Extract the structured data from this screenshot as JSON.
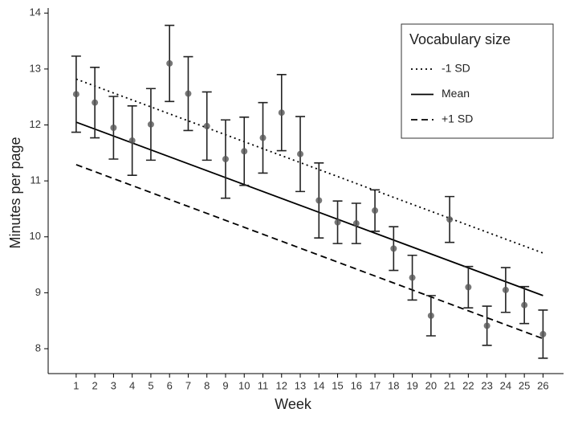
{
  "chart_data": {
    "type": "scatter",
    "xlabel": "Week",
    "ylabel": "Minutes per page",
    "x": [
      1,
      2,
      3,
      4,
      5,
      6,
      7,
      8,
      9,
      10,
      11,
      12,
      13,
      14,
      15,
      16,
      17,
      18,
      19,
      20,
      21,
      22,
      23,
      24,
      25,
      26
    ],
    "values": [
      12.55,
      12.4,
      11.95,
      11.72,
      12.01,
      13.1,
      12.56,
      11.98,
      11.39,
      11.53,
      11.77,
      12.22,
      11.48,
      10.65,
      10.26,
      10.24,
      10.47,
      9.79,
      9.27,
      8.59,
      10.31,
      9.1,
      8.41,
      9.05,
      8.78,
      8.26
    ],
    "errors": [
      0.68,
      0.63,
      0.56,
      0.62,
      0.64,
      0.68,
      0.66,
      0.61,
      0.7,
      0.61,
      0.63,
      0.68,
      0.67,
      0.67,
      0.38,
      0.36,
      0.37,
      0.39,
      0.4,
      0.36,
      0.41,
      0.37,
      0.35,
      0.4,
      0.33,
      0.43
    ],
    "point_color": "#555555",
    "legend_title": "Vocabulary size",
    "series": [
      {
        "name": "-1 SD",
        "color": "#000000",
        "linestyle": "dotted",
        "x": [
          1,
          26
        ],
        "values": [
          12.82,
          9.71
        ]
      },
      {
        "name": "Mean",
        "color": "#000000",
        "linestyle": "solid",
        "x": [
          1,
          26
        ],
        "values": [
          12.05,
          8.95
        ]
      },
      {
        "name": "+1 SD",
        "color": "#000000",
        "linestyle": "dashed",
        "x": [
          1,
          26
        ],
        "values": [
          11.29,
          8.18
        ]
      }
    ],
    "xlim": [
      -0.5,
      27.1
    ],
    "ylim": [
      7.555,
      14.09
    ],
    "xticks": [
      1,
      2,
      3,
      4,
      5,
      6,
      7,
      8,
      9,
      10,
      11,
      12,
      13,
      14,
      15,
      16,
      17,
      18,
      19,
      20,
      21,
      22,
      23,
      24,
      25,
      26
    ],
    "yticks": [
      8,
      9,
      10,
      11,
      12,
      13,
      14
    ],
    "grid": false,
    "legend": "top-right"
  }
}
